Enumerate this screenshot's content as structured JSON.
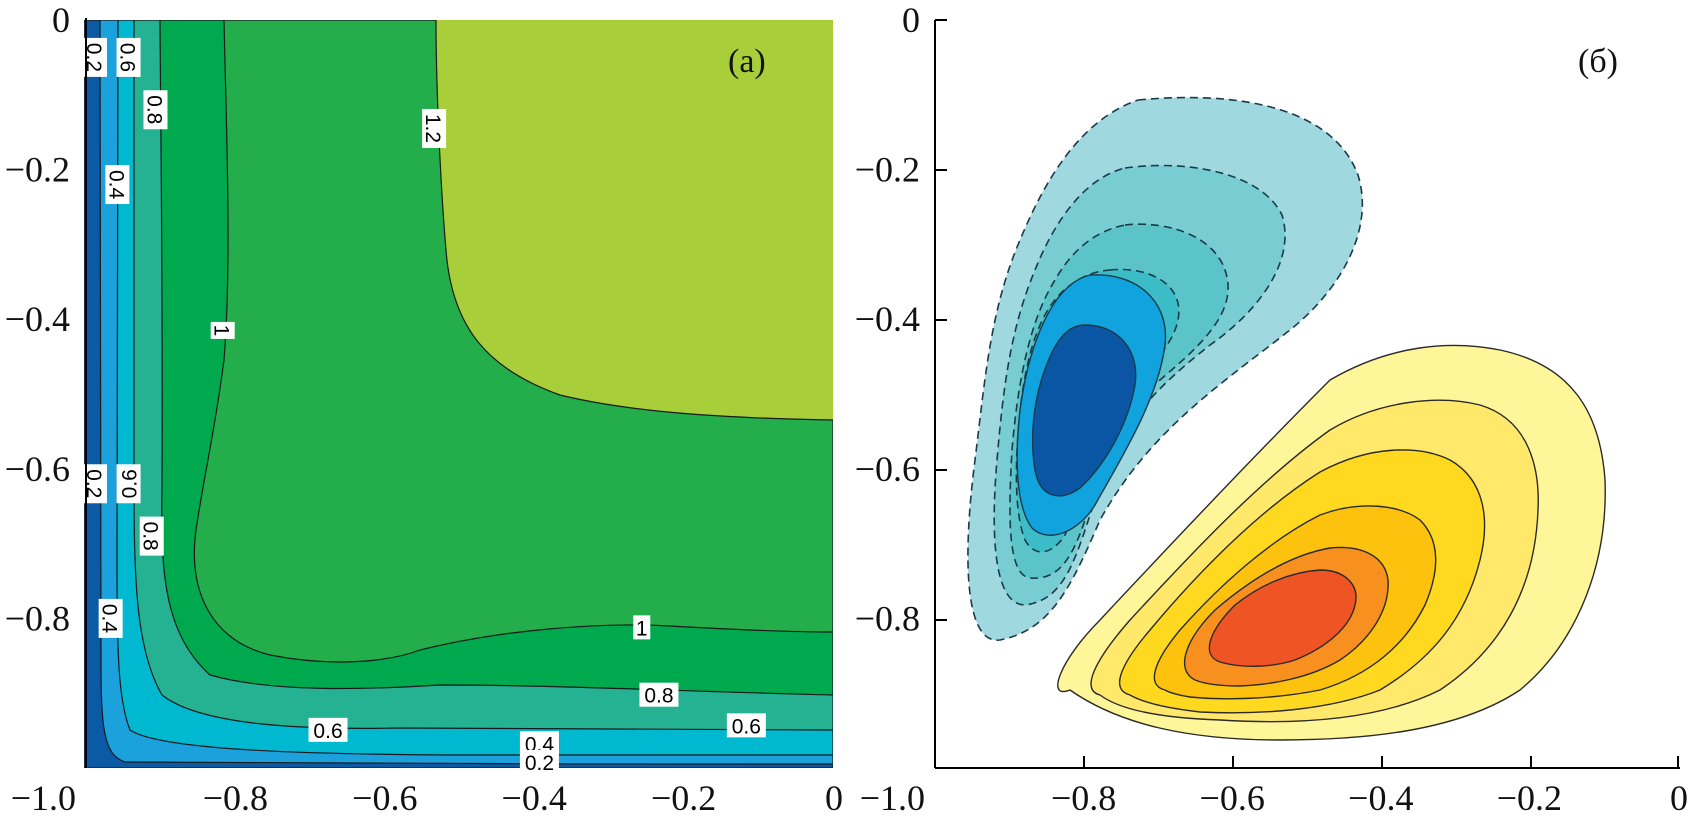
{
  "chart_data": [
    {
      "type": "contour",
      "panel_label": "(a)",
      "xlim": [
        -1.0,
        0
      ],
      "ylim": [
        -1.0,
        0
      ],
      "x_ticks": [
        -1.0,
        -0.8,
        -0.6,
        -0.4,
        -0.2,
        0
      ],
      "x_tick_labels": [
        "−1.0",
        "−0.8",
        "−0.6",
        "−0.4",
        "−0.2",
        "0"
      ],
      "y_ticks": [
        0,
        -0.2,
        -0.4,
        -0.6,
        -0.8
      ],
      "y_tick_labels": [
        "0",
        "−0.2",
        "−0.4",
        "−0.6",
        "−0.8"
      ],
      "levels": [
        0.2,
        0.4,
        0.6,
        0.8,
        1.0,
        1.2
      ],
      "fill_colors": [
        "#0a5aa6",
        "#1ba1dc",
        "#00b8cf",
        "#25b292",
        "#00a94e",
        "#24ad4b",
        "#a8cf3a"
      ],
      "contour_labels": [
        {
          "text": "0.2",
          "x": -0.988,
          "y": -0.05,
          "rotation": 90
        },
        {
          "text": "0.6",
          "x": -0.943,
          "y": -0.05,
          "rotation": 90
        },
        {
          "text": "0.8",
          "x": -0.907,
          "y": -0.12,
          "rotation": 90
        },
        {
          "text": "1.2",
          "x": -0.534,
          "y": -0.145,
          "rotation": 90
        },
        {
          "text": "0.4",
          "x": -0.958,
          "y": -0.22,
          "rotation": 90
        },
        {
          "text": "1",
          "x": -0.817,
          "y": -0.415,
          "rotation": 90
        },
        {
          "text": "0.2",
          "x": -0.988,
          "y": -0.62,
          "rotation": 90
        },
        {
          "text": "0.6",
          "x": -0.943,
          "y": -0.62,
          "rotation": -90
        },
        {
          "text": "0.8",
          "x": -0.912,
          "y": -0.69,
          "rotation": 90
        },
        {
          "text": "0.4",
          "x": -0.967,
          "y": -0.8,
          "rotation": 90
        },
        {
          "text": "1",
          "x": -0.256,
          "y": -0.812,
          "rotation": 0
        },
        {
          "text": "0.8",
          "x": -0.233,
          "y": -0.902,
          "rotation": 0
        },
        {
          "text": "0.6",
          "x": -0.676,
          "y": -0.949,
          "rotation": 0
        },
        {
          "text": "0.6",
          "x": -0.116,
          "y": -0.943,
          "rotation": 0
        },
        {
          "text": "0.4",
          "x": -0.393,
          "y": -0.967,
          "rotation": 0
        },
        {
          "text": "0.2",
          "x": -0.393,
          "y": -0.992,
          "rotation": 0
        }
      ]
    },
    {
      "type": "contour",
      "panel_label": "(б)",
      "xlim": [
        -1.0,
        0
      ],
      "ylim": [
        -1.0,
        0
      ],
      "x_ticks": [
        -1.0,
        -0.8,
        -0.6,
        -0.4,
        -0.2,
        0
      ],
      "x_tick_labels": [
        "−1.0",
        "−0.8",
        "−0.6",
        "−0.4",
        "−0.2",
        "0"
      ],
      "y_ticks": [
        0,
        -0.2,
        -0.4,
        -0.6,
        -0.8
      ],
      "y_tick_labels": [
        "0",
        "−0.2",
        "−0.4",
        "−0.6",
        "−0.8"
      ],
      "negative_lobe": {
        "center": [
          -0.79,
          -0.53
        ],
        "line_style": "dashed",
        "fill_colors": [
          "#a0d8df",
          "#78cdd3",
          "#5bc4c8",
          "#3cbcc6",
          "#10a3dd",
          "#0b56a4"
        ]
      },
      "positive_lobe": {
        "center": [
          -0.52,
          -0.8
        ],
        "line_style": "solid",
        "fill_colors": [
          "#fff69a",
          "#ffe86a",
          "#ffd820",
          "#fdc20e",
          "#f7901e",
          "#ef5425"
        ]
      }
    }
  ]
}
